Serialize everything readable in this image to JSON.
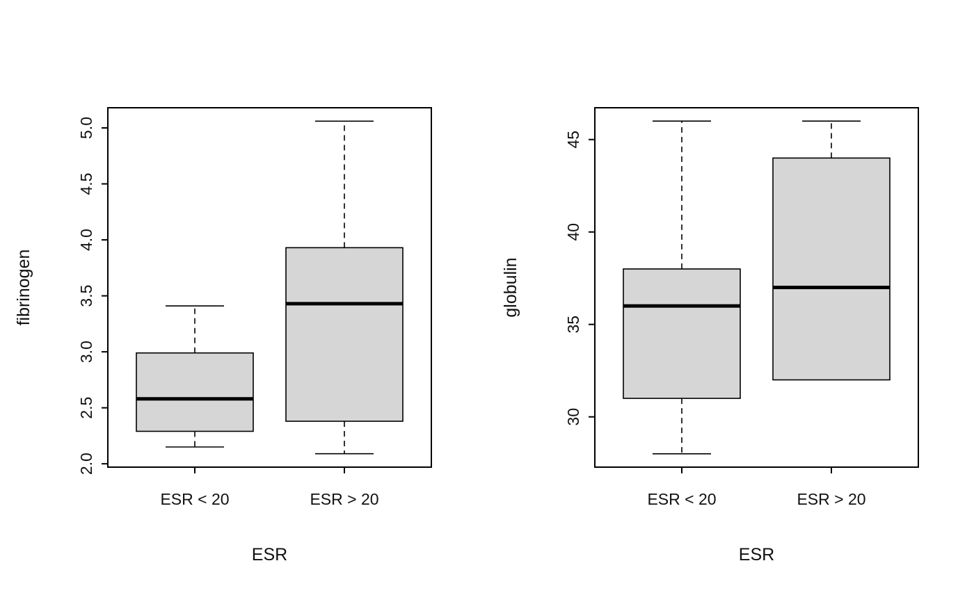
{
  "figure": {
    "background": "#ffffff",
    "text_color": "#111111",
    "box_fill": "#d6d6d6",
    "line_color": "#000000"
  },
  "chart_data": [
    {
      "type": "boxplot",
      "title": "",
      "xlabel": "ESR",
      "ylabel": "fibrinogen",
      "categories": [
        "ESR < 20",
        "ESR > 20"
      ],
      "yticks": [
        2.0,
        2.5,
        3.0,
        3.5,
        4.0,
        4.5,
        5.0
      ],
      "ytick_labels": [
        "2.0",
        "2.5",
        "3.0",
        "3.5",
        "4.0",
        "4.5",
        "5.0"
      ],
      "ylim": [
        1.97,
        5.18
      ],
      "grid": false,
      "legend": "none",
      "boxes": [
        {
          "category": "ESR < 20",
          "whisker_low": 2.15,
          "q1": 2.29,
          "median": 2.58,
          "q3": 2.99,
          "whisker_high": 3.41
        },
        {
          "category": "ESR > 20",
          "whisker_low": 2.09,
          "q1": 2.38,
          "median": 3.43,
          "q3": 3.93,
          "whisker_high": 5.06
        }
      ]
    },
    {
      "type": "boxplot",
      "title": "",
      "xlabel": "ESR",
      "ylabel": "globulin",
      "categories": [
        "ESR < 20",
        "ESR > 20"
      ],
      "yticks": [
        30,
        35,
        40,
        45
      ],
      "ytick_labels": [
        "30",
        "35",
        "40",
        "45"
      ],
      "ylim": [
        27.28,
        46.72
      ],
      "grid": false,
      "legend": "none",
      "boxes": [
        {
          "category": "ESR < 20",
          "whisker_low": 28,
          "q1": 31,
          "median": 36,
          "q3": 38,
          "whisker_high": 46
        },
        {
          "category": "ESR > 20",
          "whisker_low": 32,
          "q1": 32,
          "median": 37,
          "q3": 44,
          "whisker_high": 46
        }
      ]
    }
  ]
}
